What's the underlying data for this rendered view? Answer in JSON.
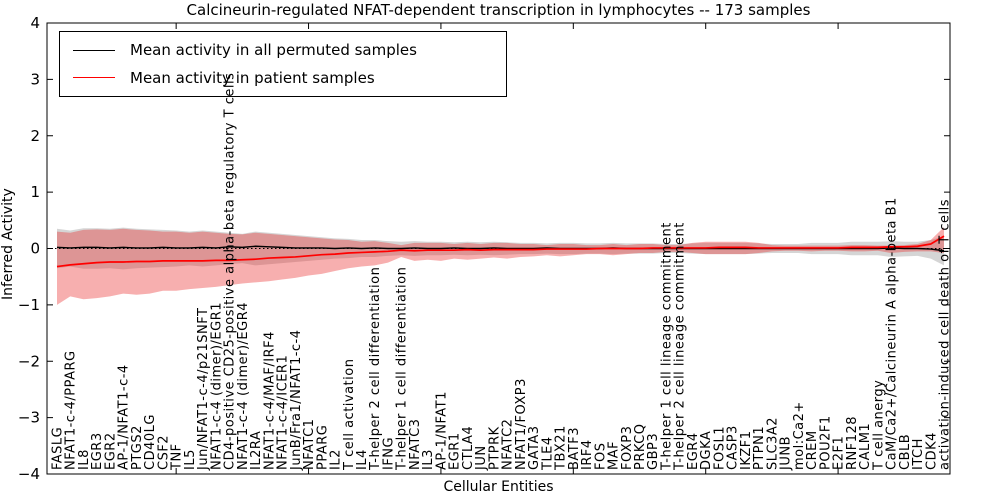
{
  "figure": {
    "title": "Calcineurin-regulated NFAT-dependent transcription in lymphocytes -- 173 samples",
    "xlabel": "Cellular Entities",
    "ylabel": "Inferred Activity"
  },
  "chart_data": {
    "type": "line",
    "title": "Calcineurin-regulated NFAT-dependent transcription in lymphocytes -- 173 samples",
    "xlabel": "Cellular Entities",
    "ylabel": "Inferred Activity",
    "ylim": [
      -4,
      4
    ],
    "yticks": [
      -4,
      -3,
      -2,
      -1,
      0,
      1,
      2,
      3,
      4
    ],
    "xticks": [
      10,
      20,
      30,
      40,
      50,
      60
    ],
    "grid": false,
    "legend_position": "upper left",
    "zero_line": 0,
    "categories": [
      "FASLG",
      "NFAT1-c-4/PPARG",
      "IL8",
      "EGR3",
      "EGR2",
      "AP-1/NFAT1-c-4",
      "PTGS2",
      "CD40LG",
      "CSF2",
      "TNF",
      "IL5",
      "Jun/NFAT1-c-4/p21SNFT",
      "NFAT1-c-4 (dimer)/EGR1",
      "CD4-positive CD25-positive alpha-beta regulatory T cells",
      "NFAT1-c-4 (dimer)/EGR4",
      "IL2RA",
      "NFAT1-c-4/MAF/IRF4",
      "NFAT1-c-4/ICER1",
      "JunB/Fra1/NFAT1-c-4",
      "NFATC1",
      "PPARG",
      "IL2",
      "T cell activation",
      "IL4",
      "T-helper 2 cell differentiation",
      "IFNG",
      "T-helper 1 cell differentiation",
      "NFATC3",
      "IL3",
      "AP-1/NFAT1",
      "EGR1",
      "CTLA4",
      "JUN",
      "PTPRK",
      "NFATC2",
      "NFAT1/FOXP3",
      "GATA3",
      "TLE4",
      "TBX21",
      "BATF3",
      "IRF4",
      "FOS",
      "MAF",
      "FOXP3",
      "PRKCQ",
      "GBP3",
      "T-helper 1 cell lineage commitment",
      "T-helper 2 cell lineage commitment",
      "EGR4",
      "DGKA",
      "FOSL1",
      "CASP3",
      "IKZF1",
      "PTPN1",
      "SLC3A2",
      "JUNB",
      "mol:Ca2+",
      "CREM",
      "POU2F1",
      "E2F1",
      "RNF128",
      "CALM1",
      "T cell anergy",
      "CaM/Ca2+/Calcineurin A alpha-beta B1",
      "CBLB",
      "ITCH",
      "CDK4",
      "activation-induced cell death of T cells"
    ],
    "series": [
      {
        "name": "Mean activity in all permuted samples",
        "color": "#000000",
        "values": [
          0.02,
          0.01,
          0.02,
          0.02,
          0.01,
          0.02,
          0.01,
          0.01,
          0.02,
          0.01,
          0.01,
          0.02,
          0.01,
          0.03,
          0.02,
          0.04,
          0.03,
          0.02,
          0.01,
          0.01,
          0.01,
          0.0,
          0.01,
          0.0,
          0.01,
          0.0,
          0.0,
          0.01,
          0.0,
          0.0,
          0.01,
          0.0,
          0.0,
          0.01,
          0.0,
          0.0,
          0.0,
          0.01,
          0.0,
          0.0,
          0.0,
          0.0,
          0.01,
          0.0,
          0.0,
          0.0,
          0.0,
          0.0,
          0.0,
          0.0,
          0.0,
          0.0,
          0.0,
          0.0,
          0.0,
          0.0,
          0.0,
          0.0,
          0.0,
          0.0,
          0.0,
          0.0,
          0.0,
          0.01,
          0.0,
          0.0,
          -0.01,
          -0.04
        ],
        "band": {
          "color": "rgba(150,150,150,0.40)",
          "hi": [
            0.35,
            0.32,
            0.36,
            0.36,
            0.35,
            0.37,
            0.35,
            0.34,
            0.33,
            0.32,
            0.3,
            0.32,
            0.3,
            0.28,
            0.26,
            0.3,
            0.28,
            0.26,
            0.24,
            0.22,
            0.2,
            0.18,
            0.17,
            0.15,
            0.15,
            0.13,
            0.12,
            0.13,
            0.12,
            0.12,
            0.11,
            0.12,
            0.11,
            0.12,
            0.11,
            0.1,
            0.1,
            0.09,
            0.1,
            0.1,
            0.09,
            0.09,
            0.1,
            0.09,
            0.09,
            0.09,
            0.08,
            0.08,
            0.09,
            0.1,
            0.1,
            0.1,
            0.1,
            0.09,
            0.08,
            0.08,
            0.08,
            0.1,
            0.1,
            0.1,
            0.12,
            0.12,
            0.12,
            0.13,
            0.12,
            0.12,
            0.15,
            0.22
          ],
          "lo": [
            -0.35,
            -0.32,
            -0.36,
            -0.36,
            -0.35,
            -0.37,
            -0.35,
            -0.34,
            -0.33,
            -0.32,
            -0.3,
            -0.32,
            -0.3,
            -0.28,
            -0.26,
            -0.3,
            -0.28,
            -0.26,
            -0.24,
            -0.22,
            -0.2,
            -0.18,
            -0.17,
            -0.15,
            -0.15,
            -0.13,
            -0.12,
            -0.13,
            -0.12,
            -0.12,
            -0.11,
            -0.12,
            -0.11,
            -0.12,
            -0.11,
            -0.1,
            -0.1,
            -0.09,
            -0.1,
            -0.1,
            -0.09,
            -0.09,
            -0.1,
            -0.09,
            -0.09,
            -0.09,
            -0.08,
            -0.08,
            -0.09,
            -0.1,
            -0.1,
            -0.1,
            -0.1,
            -0.09,
            -0.08,
            -0.08,
            -0.08,
            -0.1,
            -0.1,
            -0.1,
            -0.12,
            -0.12,
            -0.12,
            -0.15,
            -0.14,
            -0.13,
            -0.18,
            -0.3
          ]
        }
      },
      {
        "name": "Mean activity in patient samples",
        "color": "#ff0000",
        "values": [
          -0.32,
          -0.29,
          -0.27,
          -0.25,
          -0.24,
          -0.24,
          -0.23,
          -0.23,
          -0.22,
          -0.22,
          -0.22,
          -0.22,
          -0.21,
          -0.21,
          -0.2,
          -0.19,
          -0.17,
          -0.16,
          -0.15,
          -0.13,
          -0.11,
          -0.1,
          -0.08,
          -0.07,
          -0.06,
          -0.05,
          -0.03,
          -0.04,
          -0.03,
          -0.03,
          -0.03,
          -0.02,
          -0.03,
          -0.02,
          -0.02,
          -0.02,
          -0.02,
          -0.01,
          -0.01,
          -0.01,
          -0.01,
          0.0,
          0.0,
          0.0,
          0.0,
          0.01,
          0.01,
          0.01,
          0.01,
          0.01,
          0.02,
          0.02,
          0.02,
          0.01,
          0.01,
          0.01,
          0.01,
          0.01,
          0.01,
          0.01,
          0.02,
          0.02,
          0.02,
          0.03,
          0.03,
          0.04,
          0.08,
          0.22
        ],
        "band": {
          "color": "rgba(235,45,45,0.38)",
          "hi": [
            0.3,
            0.28,
            0.33,
            0.34,
            0.33,
            0.35,
            0.33,
            0.32,
            0.3,
            0.3,
            0.28,
            0.3,
            0.28,
            0.26,
            0.25,
            0.28,
            0.26,
            0.24,
            0.22,
            0.2,
            0.18,
            0.16,
            0.15,
            0.12,
            0.13,
            0.1,
            0.06,
            0.1,
            0.1,
            0.1,
            0.08,
            0.1,
            0.08,
            0.1,
            0.1,
            0.08,
            0.08,
            0.06,
            0.08,
            0.08,
            0.06,
            0.06,
            0.08,
            0.06,
            0.08,
            0.08,
            0.06,
            0.06,
            0.1,
            0.12,
            0.12,
            0.12,
            0.12,
            0.1,
            0.06,
            0.05,
            0.05,
            0.05,
            0.05,
            0.05,
            0.06,
            0.06,
            0.05,
            0.05,
            0.06,
            0.08,
            0.15,
            0.38
          ],
          "lo": [
            -1.0,
            -0.85,
            -0.9,
            -0.88,
            -0.85,
            -0.8,
            -0.82,
            -0.8,
            -0.75,
            -0.75,
            -0.72,
            -0.7,
            -0.68,
            -0.65,
            -0.62,
            -0.6,
            -0.58,
            -0.55,
            -0.52,
            -0.48,
            -0.45,
            -0.4,
            -0.35,
            -0.32,
            -0.3,
            -0.25,
            -0.15,
            -0.22,
            -0.2,
            -0.22,
            -0.18,
            -0.2,
            -0.18,
            -0.16,
            -0.18,
            -0.15,
            -0.14,
            -0.12,
            -0.14,
            -0.12,
            -0.1,
            -0.1,
            -0.12,
            -0.1,
            -0.08,
            -0.08,
            -0.06,
            -0.06,
            -0.08,
            -0.1,
            -0.1,
            -0.1,
            -0.1,
            -0.08,
            -0.05,
            -0.04,
            -0.04,
            -0.05,
            -0.04,
            -0.04,
            -0.05,
            -0.05,
            -0.04,
            -0.08,
            -0.06,
            -0.05,
            -0.05,
            -0.08
          ]
        }
      }
    ]
  }
}
